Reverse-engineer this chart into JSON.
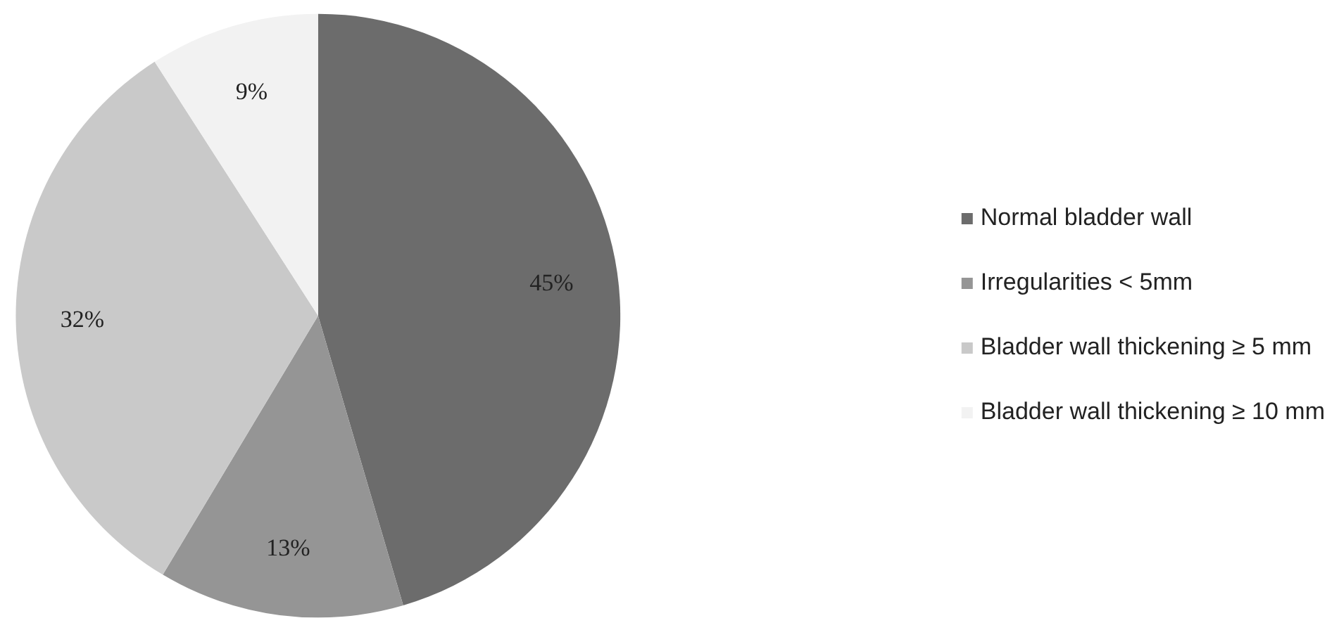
{
  "chart_data": {
    "type": "pie",
    "categories": [
      "Normal bladder wall",
      "Irregularities < 5mm",
      "Bladder wall thickening ≥ 5 mm",
      "Bladder wall thickening ≥ 10 mm"
    ],
    "values": [
      45,
      13,
      32,
      9
    ],
    "colors": [
      "#6c6c6c",
      "#959595",
      "#c9c9c9",
      "#f2f2f2"
    ],
    "value_labels": [
      "45%",
      "13%",
      "32%",
      "9%"
    ],
    "legend": "right"
  }
}
